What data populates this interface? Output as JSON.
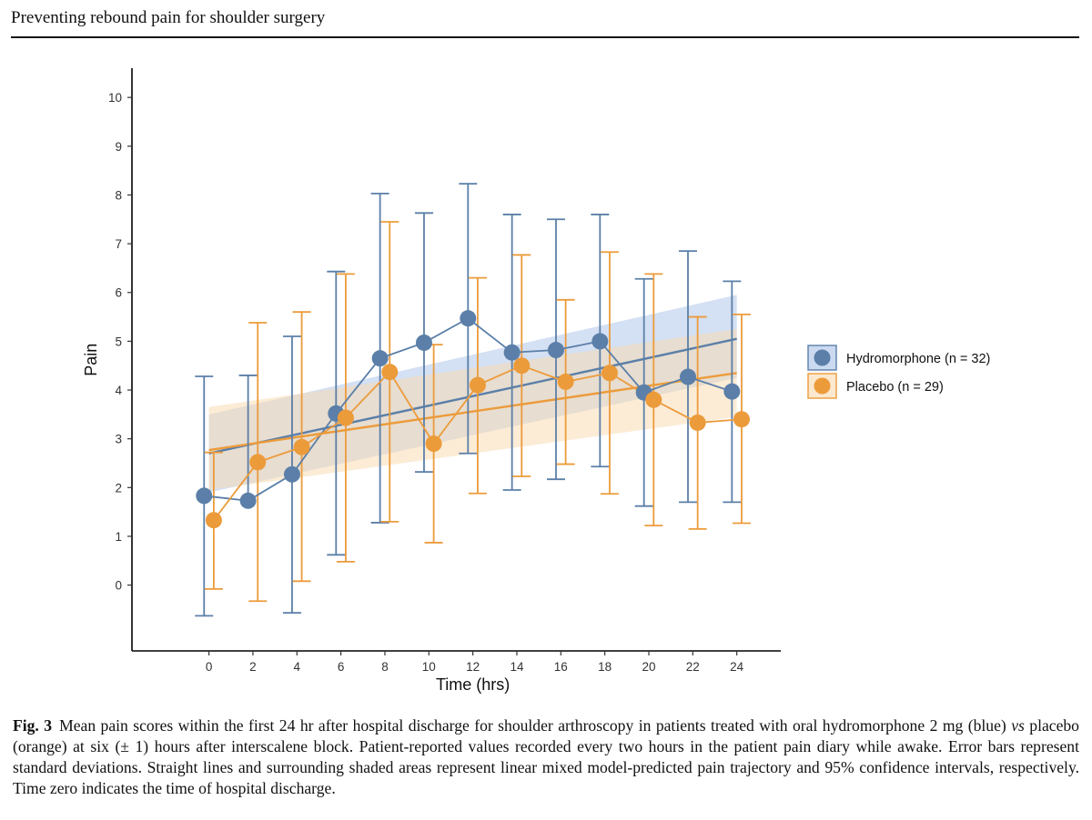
{
  "page": {
    "running_header": "Preventing rebound pain for shoulder surgery"
  },
  "chart_data": {
    "type": "line",
    "title": "",
    "xlabel": "Time (hrs)",
    "ylabel": "Pain",
    "xlim": [
      -3.5,
      26
    ],
    "ylim": [
      -1.35,
      10.6
    ],
    "x_ticks": [
      0,
      2,
      4,
      6,
      8,
      10,
      12,
      14,
      16,
      18,
      20,
      22,
      24
    ],
    "y_ticks": [
      0,
      1,
      2,
      3,
      4,
      5,
      6,
      7,
      8,
      9,
      10
    ],
    "grid": false,
    "legend_position": "right",
    "series": [
      {
        "name": "Hydromorphone (n = 32)",
        "color": "#5b7fa8",
        "band_color": "#a9c1e8",
        "x": [
          0,
          2,
          4,
          6,
          8,
          10,
          12,
          14,
          16,
          18,
          20,
          22,
          24
        ],
        "values": [
          1.83,
          1.73,
          2.27,
          3.52,
          4.65,
          4.97,
          5.47,
          4.77,
          4.82,
          5.0,
          3.95,
          4.27,
          3.97
        ],
        "err_upper": [
          4.28,
          4.3,
          5.1,
          6.43,
          8.03,
          7.63,
          8.23,
          7.6,
          7.5,
          7.6,
          6.28,
          6.85,
          6.23
        ],
        "err_lower": [
          -0.63,
          null,
          -0.57,
          0.62,
          1.28,
          2.32,
          2.7,
          1.95,
          2.17,
          2.43,
          1.62,
          1.7,
          1.7
        ],
        "trend": [
          2.7,
          5.05
        ],
        "ci_at_0": [
          1.9,
          3.5
        ],
        "ci_at_24": [
          4.25,
          5.95
        ]
      },
      {
        "name": "Placebo (n = 29)",
        "color": "#ec9b3b",
        "band_color": "#f9d9ae",
        "x": [
          0,
          2,
          4,
          6,
          8,
          10,
          12,
          14,
          16,
          18,
          20,
          22,
          24
        ],
        "values": [
          1.33,
          2.52,
          2.83,
          3.43,
          4.37,
          2.9,
          4.1,
          4.5,
          4.17,
          4.35,
          3.8,
          3.33,
          3.4
        ],
        "err_upper": [
          2.72,
          5.38,
          5.6,
          6.38,
          7.45,
          4.93,
          6.3,
          6.77,
          5.85,
          6.83,
          6.38,
          5.5,
          5.55
        ],
        "err_lower": [
          -0.08,
          -0.33,
          0.08,
          0.48,
          1.3,
          0.87,
          1.88,
          2.23,
          2.48,
          1.87,
          1.22,
          1.15,
          1.27
        ],
        "trend": [
          2.77,
          4.35
        ],
        "ci_at_0": [
          1.95,
          3.65
        ],
        "ci_at_24": [
          3.45,
          5.25
        ]
      }
    ]
  },
  "caption": {
    "label": "Fig. 3",
    "text_1": "Mean pain scores within the first 24 hr after hospital discharge for shoulder arthroscopy in patients treated with oral hydromorphone 2 mg (blue) ",
    "vs": "vs",
    "text_2": " placebo (orange) at six (± 1) hours after interscalene block. Patient-reported values recorded every two hours in the patient pain diary while awake. Error bars represent standard deviations. Straight lines and surrounding shaded areas represent linear mixed model-predicted pain trajectory and 95% confidence intervals, respectively. Time zero indicates the time of hospital discharge."
  }
}
